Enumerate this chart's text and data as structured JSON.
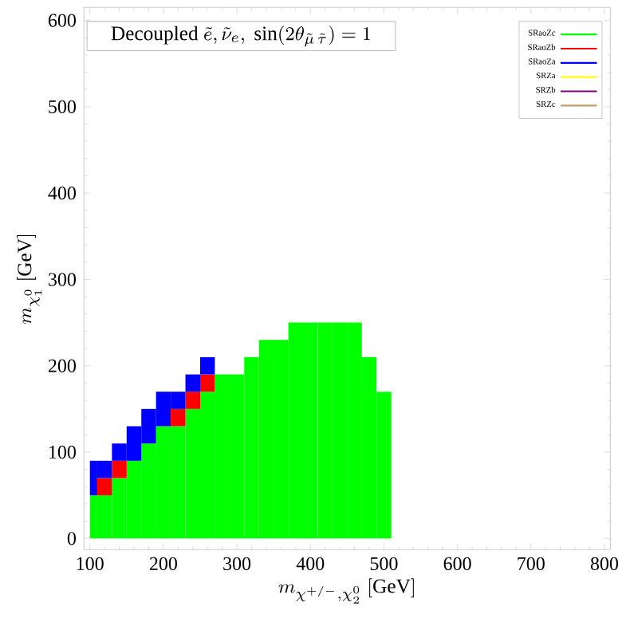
{
  "chart_data": {
    "type": "bar",
    "stacked": true,
    "title": "\\mathrm{Decoupled}\\ \\tilde{e},\\tilde{\\nu}_{e},\\ \\sin(2\\theta_{\\tilde{\\mu}\\,\\tilde{\\tau}})=1",
    "xlabel": "m_{\\chi^{+/-},\\chi_{2}^{0}}\\ [\\mathrm{GeV}]",
    "ylabel": "m_{\\chi_{1}^{0}}\\ [\\mathrm{GeV}]",
    "xlim": [
      92,
      808
    ],
    "ylim": [
      -13,
      615
    ],
    "xticks": [
      100,
      200,
      300,
      400,
      500,
      600,
      700,
      800
    ],
    "yticks": [
      0,
      100,
      200,
      300,
      400,
      500,
      600
    ],
    "legend": "top right",
    "x": [
      100,
      120,
      140,
      160,
      180,
      200,
      220,
      240,
      260,
      280,
      300,
      320,
      340,
      360,
      380,
      400,
      420,
      440,
      460,
      480,
      500
    ],
    "series": [
      {
        "name": "SRaoZc",
        "color": "#00ff00",
        "values": [
          50,
          50,
          70,
          90,
          110,
          130,
          130,
          150,
          170,
          190,
          190,
          210,
          230,
          230,
          250,
          250,
          250,
          250,
          250,
          210,
          170
        ]
      },
      {
        "name": "SRaoZb",
        "color": "#ff0000",
        "values": [
          null,
          20,
          20,
          null,
          null,
          null,
          20,
          20,
          20,
          null,
          null,
          null,
          null,
          null,
          null,
          null,
          null,
          null,
          null,
          null,
          null
        ]
      },
      {
        "name": "SRaoZa",
        "color": "#0000ff",
        "values": [
          40,
          20,
          20,
          40,
          40,
          40,
          20,
          20,
          20,
          null,
          null,
          null,
          null,
          null,
          null,
          null,
          null,
          null,
          null,
          null,
          null
        ]
      },
      {
        "name": "SRZa",
        "color": "#ffff00",
        "values": [
          null,
          null,
          null,
          null,
          null,
          null,
          null,
          null,
          null,
          null,
          null,
          null,
          null,
          null,
          null,
          null,
          null,
          null,
          null,
          null,
          null
        ]
      },
      {
        "name": "SRZb",
        "color": "#800080",
        "values": [
          null,
          null,
          null,
          null,
          null,
          null,
          null,
          null,
          null,
          null,
          null,
          null,
          null,
          null,
          null,
          null,
          null,
          null,
          null,
          null,
          null
        ]
      },
      {
        "name": "SRZc",
        "color": "#c19a6b",
        "values": [
          null,
          null,
          null,
          null,
          null,
          null,
          null,
          null,
          null,
          null,
          null,
          null,
          null,
          null,
          null,
          null,
          null,
          null,
          null,
          null,
          null
        ]
      }
    ]
  }
}
